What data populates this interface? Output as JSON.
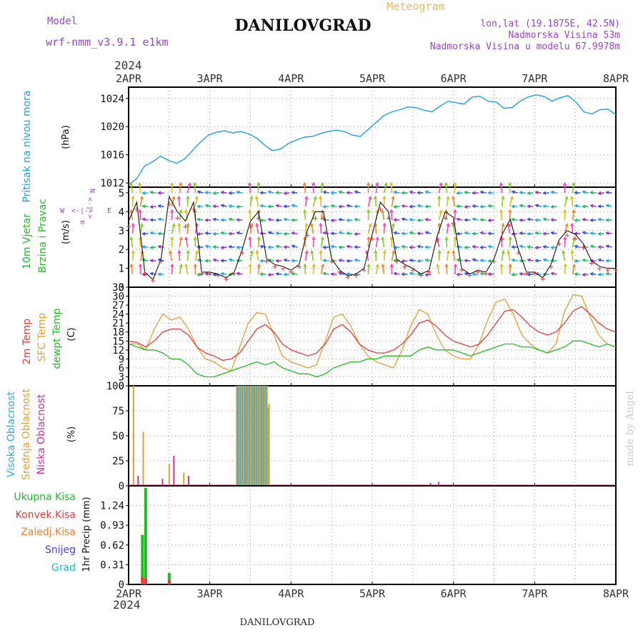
{
  "header": {
    "model_label": "Model",
    "model_name": "wrf-nmm_v3.9.1  e1km",
    "product": "Meteogram",
    "station": "DANILOVGRAD",
    "lonlat": "lon,lat (19.1875E, 42.5N)",
    "elevation": "Nadmorska Visina 53m",
    "model_elevation": "Nadmorska Visina u modelu 67.9978m"
  },
  "footer": {
    "station": "DANILOVGRAD",
    "credit": "made by Angel"
  },
  "time_axis": {
    "year": "2024",
    "ticks": [
      "2APR",
      "3APR",
      "4APR",
      "5APR",
      "6APR",
      "7APR",
      "8APR"
    ]
  },
  "colors": {
    "pressure": "#1ea0e6",
    "temp2m": "#e83a3a",
    "sfc_temp": "#e0a030",
    "dewpt": "#22bb22",
    "cloud_high": "#33aadd",
    "cloud_mid": "#e0a030",
    "cloud_low": "#cc3399",
    "precip_total": "#22bb22",
    "precip_conv": "#e83a3a",
    "precip_grid": "#f08030",
    "snow": "#4444dd",
    "graupel": "#22bbbb",
    "axis_label": "#9944cc"
  },
  "panels": {
    "pressure": {
      "ylabel1": "Pritisak na nivou mora",
      "ylabel2": "(hPa)",
      "ticks": [
        "1012",
        "1016",
        "1020",
        "1024"
      ]
    },
    "wind": {
      "ylabel1": "10m Vjetar",
      "ylabel2": "Brzina i Pravac",
      "ylabel3": "(m/s)",
      "ticks": [
        "0",
        "1",
        "2",
        "3",
        "4",
        "5"
      ],
      "compass": {
        "w": "W",
        "e": "E",
        "n": "N",
        "s": "α"
      }
    },
    "temperature": {
      "ylabel1": "2m Temp",
      "ylabel2": "SFC Temp",
      "ylabel3": "dewpt Temp",
      "ylabel4": "(C)",
      "ticks": [
        "0",
        "3",
        "6",
        "9",
        "12",
        "15",
        "18",
        "21",
        "24",
        "27",
        "30",
        "33"
      ]
    },
    "clouds": {
      "ylabel1": "Visoka Oblacnost",
      "ylabel2": "Srednja Oblacnost",
      "ylabel3": "Niska Oblacnost",
      "ylabel4": "(%)",
      "ticks": [
        "0",
        "25",
        "50",
        "75",
        "100"
      ]
    },
    "precip": {
      "ylabel": "1hr Precip (mm)",
      "ticks": [
        "0",
        "0.31",
        "0.62",
        "0.93",
        "1.24"
      ],
      "legend": [
        "Ukupna Kisa",
        "Konvek.Kisa",
        "Zaledj.Kisa",
        "Snijeg",
        "Grad"
      ]
    }
  },
  "chart_data": [
    {
      "type": "line",
      "series": [
        {
          "name": "Pritisak na nivou mora",
          "values": [
            1011.8,
            1012.6,
            1014.4,
            1015.0,
            1015.8,
            1015.2,
            1014.8,
            1015.4,
            1016.6,
            1017.8,
            1018.8,
            1019.2,
            1019.4,
            1019.1,
            1019.3,
            1019.0,
            1018.4,
            1017.4,
            1016.6,
            1016.8,
            1017.6,
            1018.1,
            1018.5,
            1018.6,
            1019.0,
            1019.3,
            1019.5,
            1019.3,
            1018.8,
            1018.6,
            1019.6,
            1020.6,
            1021.6,
            1022.1,
            1022.4,
            1022.8,
            1022.7,
            1022.3,
            1022.1,
            1022.9,
            1023.6,
            1023.4,
            1023.2,
            1024.2,
            1024.3,
            1023.6,
            1023.5,
            1022.6,
            1022.7,
            1023.6,
            1024.2,
            1024.5,
            1024.3,
            1023.6,
            1024.1,
            1024.4,
            1023.5,
            1022.1,
            1021.8,
            1022.4,
            1022.5,
            1021.7
          ]
        }
      ],
      "x_range": [
        "2APR",
        "8APR"
      ],
      "ylim": [
        1011.4,
        1025.6
      ],
      "ylabel": "(hPa)"
    },
    {
      "type": "line",
      "series": [
        {
          "name": "10m Vjetar Brzina",
          "values": [
            3.5,
            4.5,
            0.8,
            0.4,
            1.5,
            4.8,
            4.0,
            3.5,
            4.5,
            0.8,
            0.8,
            0.7,
            0.5,
            0.8,
            2.0,
            3.5,
            4.0,
            1.5,
            1.2,
            1.1,
            0.9,
            1.2,
            3.0,
            4.0,
            4.0,
            1.5,
            0.9,
            0.6,
            0.7,
            1.0,
            2.8,
            4.5,
            4.0,
            1.5,
            1.2,
            1.0,
            0.7,
            0.9,
            2.7,
            4.0,
            3.7,
            1.0,
            0.7,
            0.9,
            0.8,
            1.5,
            2.8,
            3.6,
            2.0,
            0.8,
            0.8,
            0.5,
            1.2,
            2.5,
            3.0,
            2.8,
            2.3,
            1.4,
            1.1,
            1.0,
            1.0
          ]
        }
      ],
      "x_range": [
        "2APR",
        "8APR"
      ],
      "ylim": [
        0,
        5.3
      ],
      "ylabel": "(m/s)"
    },
    {
      "type": "line",
      "series": [
        {
          "name": "2m Temp",
          "values": [
            15,
            14.5,
            13,
            15,
            18,
            19,
            19,
            17,
            13,
            11,
            10,
            8.5,
            9,
            11,
            15,
            19,
            20.5,
            18,
            14,
            12,
            11,
            10,
            11,
            14,
            19,
            20.5,
            18,
            14,
            12,
            11,
            11,
            12,
            14,
            17,
            21,
            22,
            20,
            17,
            15,
            14,
            13,
            14,
            17,
            21,
            25,
            25.5,
            23,
            20,
            18,
            17,
            18,
            21,
            25,
            26.5,
            24,
            21,
            19,
            18
          ]
        },
        {
          "name": "SFC Temp",
          "values": [
            14,
            14,
            12,
            19,
            24,
            22,
            23,
            19,
            13,
            9,
            8,
            6,
            5,
            13,
            21,
            24.5,
            24,
            17,
            10,
            8,
            7,
            6,
            7,
            15,
            23,
            24,
            20,
            14,
            10,
            8,
            7,
            6,
            12,
            20,
            25.5,
            24,
            17,
            12,
            10,
            9,
            9,
            14,
            22,
            28,
            29,
            24,
            17,
            14,
            12,
            11,
            14,
            25,
            30.5,
            30,
            23,
            17,
            14,
            13
          ]
        },
        {
          "name": "dewpt Temp",
          "values": [
            14,
            13,
            12,
            12,
            11,
            9,
            9,
            7,
            4,
            3,
            3,
            4,
            5,
            6,
            7,
            8,
            7,
            8,
            6,
            5,
            4,
            4,
            3,
            4,
            6,
            7,
            8,
            8,
            9,
            9,
            10,
            10,
            10,
            10,
            12,
            13,
            12,
            12,
            12,
            11,
            10,
            11,
            12,
            13,
            14,
            14,
            13,
            13,
            12,
            11,
            12,
            13,
            15,
            15,
            14,
            13,
            14,
            13
          ]
        }
      ],
      "x_range": [
        "2APR",
        "8APR"
      ],
      "ylim": [
        0,
        33
      ],
      "ylabel": "(C)"
    },
    {
      "type": "bar",
      "series": [
        {
          "name": "Visoka Oblacnost",
          "points": [
            [
              0.05,
              0
            ],
            [
              3.35,
              100
            ],
            [
              3.45,
              100
            ],
            [
              3.55,
              100
            ],
            [
              3.65,
              100
            ],
            [
              3.73,
              78
            ]
          ]
        },
        {
          "name": "Srednja Oblacnost",
          "points": [
            [
              2.06,
              100
            ],
            [
              2.18,
              54
            ],
            [
              2.5,
              22
            ],
            [
              2.68,
              13
            ],
            [
              3.35,
              100
            ],
            [
              3.45,
              100
            ],
            [
              3.55,
              100
            ],
            [
              3.65,
              100
            ],
            [
              3.73,
              82
            ]
          ]
        },
        {
          "name": "Niska Oblacnost",
          "points": [
            [
              2.1,
              10
            ],
            [
              2.4,
              7
            ],
            [
              2.54,
              30
            ],
            [
              2.72,
              10
            ],
            [
              5.7,
              3
            ],
            [
              5.8,
              4
            ]
          ]
        }
      ],
      "x_range": [
        "2APR",
        "8APR"
      ],
      "ylim": [
        0,
        100
      ],
      "ylabel": "(%)"
    },
    {
      "type": "bar",
      "series": [
        {
          "name": "Ukupna Kisa",
          "points": [
            [
              2.17,
              0.78
            ],
            [
              2.21,
              1.52
            ],
            [
              2.5,
              0.18
            ]
          ]
        },
        {
          "name": "Konvek.Kisa",
          "points": [
            [
              2.17,
              0.12
            ],
            [
              2.21,
              0.09
            ],
            [
              2.5,
              0.07
            ]
          ]
        },
        {
          "name": "Zaledj.Kisa",
          "points": []
        },
        {
          "name": "Snijeg",
          "points": []
        },
        {
          "name": "Grad",
          "points": []
        }
      ],
      "x_range": [
        "2APR",
        "8APR"
      ],
      "ylim": [
        0,
        1.55
      ],
      "ylabel": "1hr Precip (mm)"
    }
  ]
}
